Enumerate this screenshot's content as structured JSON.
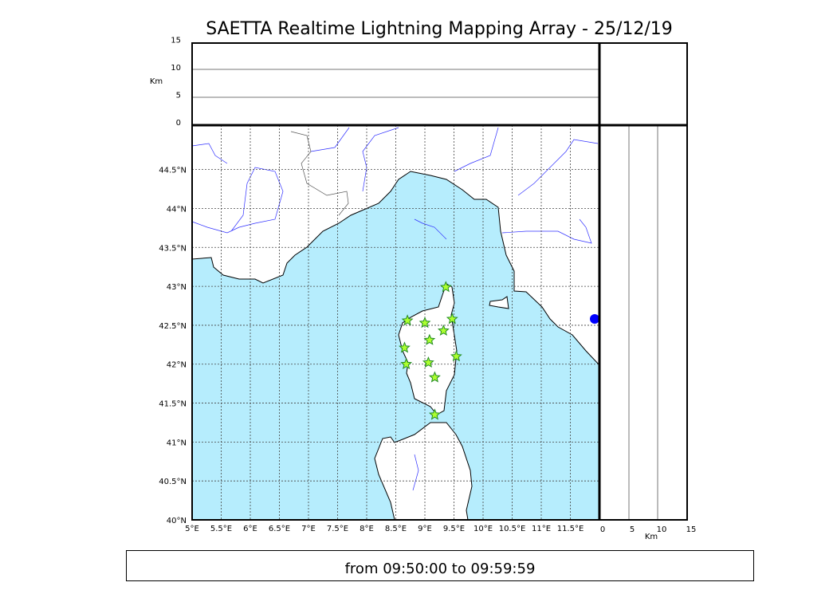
{
  "title": "SAETTA Realtime Lightning Mapping Array - 25/12/19",
  "time_range": "from 09:50:00 to 09:59:59",
  "colors": {
    "sea": "#b6edfd",
    "land": "#ffffff",
    "river": "#0000ff",
    "event": "#adff2f",
    "event_stroke": "#228b22"
  },
  "map": {
    "lon_range": [
      5,
      12
    ],
    "lat_range": [
      40,
      45.07
    ],
    "lon_ticks": [
      "5°E",
      "5.5°E",
      "6°E",
      "6.5°E",
      "7°E",
      "7.5°E",
      "8°E",
      "8.5°E",
      "9°E",
      "9.5°E",
      "10°E",
      "10.5°E",
      "11°E",
      "11.5°E"
    ],
    "lat_ticks": [
      "40°N",
      "40.5°N",
      "41°N",
      "41.5°N",
      "42°N",
      "42.5°N",
      "43°N",
      "43.5°N",
      "44°N",
      "44.5°N"
    ]
  },
  "altitude_panel": {
    "label": "Km",
    "ticks": [
      "0",
      "5",
      "10",
      "15"
    ]
  },
  "side_panel": {
    "label": "Km",
    "ticks": [
      "0",
      "5",
      "10",
      "15"
    ]
  },
  "events": [
    {
      "lon": 9.36,
      "lat": 42.99
    },
    {
      "lon": 8.7,
      "lat": 42.56
    },
    {
      "lon": 9.0,
      "lat": 42.53
    },
    {
      "lon": 9.47,
      "lat": 42.58
    },
    {
      "lon": 9.32,
      "lat": 42.43
    },
    {
      "lon": 9.08,
      "lat": 42.31
    },
    {
      "lon": 8.65,
      "lat": 42.21
    },
    {
      "lon": 8.68,
      "lat": 42.0
    },
    {
      "lon": 9.06,
      "lat": 42.02
    },
    {
      "lon": 9.54,
      "lat": 42.1
    },
    {
      "lon": 9.17,
      "lat": 41.83
    },
    {
      "lon": 9.17,
      "lat": 41.35
    }
  ]
}
